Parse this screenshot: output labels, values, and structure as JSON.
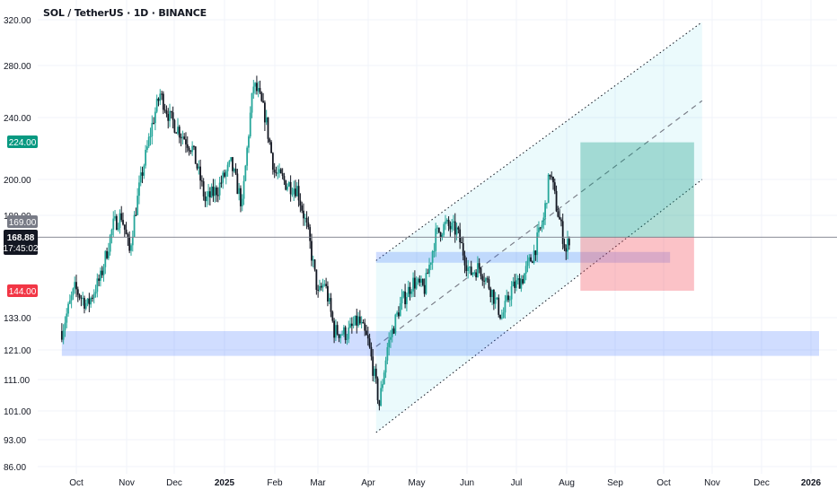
{
  "header": {
    "symbol_line": "SOL / TetherUS · 1D · BINANCE"
  },
  "chart_data": {
    "type": "candlestick",
    "title": "SOL / TetherUS · 1D · BINANCE",
    "y_ticks": [
      "320.00",
      "280.00",
      "240.00",
      "200.00",
      "180.00",
      "133.00",
      "121.00",
      "111.00",
      "101.00",
      "93.00",
      "86.00"
    ],
    "x_ticks": [
      "Oct",
      "Nov",
      "Dec",
      "2025",
      "Feb",
      "Mar",
      "Apr",
      "May",
      "Jun",
      "Jul",
      "Aug",
      "Sep",
      "Oct",
      "Nov",
      "Dec",
      "2026"
    ],
    "last_price_label": "168.88",
    "countdown_label": "17:45:02",
    "tags": [
      {
        "text": "224.00",
        "color": "#089981"
      },
      {
        "text": "169.00",
        "color": "#787b86"
      },
      {
        "text": "144.00",
        "color": "#f23645"
      }
    ],
    "price_path": [
      [
        "2024-09-22",
        128
      ],
      [
        "2024-09-30",
        145
      ],
      [
        "2024-10-08",
        138
      ],
      [
        "2024-10-16",
        150
      ],
      [
        "2024-10-24",
        175
      ],
      [
        "2024-10-29",
        180
      ],
      [
        "2024-11-03",
        162
      ],
      [
        "2024-11-10",
        200
      ],
      [
        "2024-11-18",
        240
      ],
      [
        "2024-11-22",
        258
      ],
      [
        "2024-11-28",
        240
      ],
      [
        "2024-12-05",
        230
      ],
      [
        "2024-12-12",
        220
      ],
      [
        "2024-12-20",
        188
      ],
      [
        "2024-12-28",
        195
      ],
      [
        "2025-01-05",
        210
      ],
      [
        "2025-01-12",
        185
      ],
      [
        "2025-01-19",
        265
      ],
      [
        "2025-01-22",
        258
      ],
      [
        "2025-01-26",
        242
      ],
      [
        "2025-02-01",
        205
      ],
      [
        "2025-02-08",
        198
      ],
      [
        "2025-02-15",
        195
      ],
      [
        "2025-02-22",
        170
      ],
      [
        "2025-02-28",
        142
      ],
      [
        "2025-03-04",
        148
      ],
      [
        "2025-03-10",
        128
      ],
      [
        "2025-03-18",
        127
      ],
      [
        "2025-03-25",
        132
      ],
      [
        "2025-03-31",
        124
      ],
      [
        "2025-04-07",
        103
      ],
      [
        "2025-04-12",
        122
      ],
      [
        "2025-04-20",
        138
      ],
      [
        "2025-04-28",
        148
      ],
      [
        "2025-05-05",
        145
      ],
      [
        "2025-05-12",
        170
      ],
      [
        "2025-05-18",
        175
      ],
      [
        "2025-05-25",
        172
      ],
      [
        "2025-06-02",
        152
      ],
      [
        "2025-06-08",
        155
      ],
      [
        "2025-06-15",
        145
      ],
      [
        "2025-06-22",
        133
      ],
      [
        "2025-06-28",
        145
      ],
      [
        "2025-07-05",
        150
      ],
      [
        "2025-07-12",
        162
      ],
      [
        "2025-07-18",
        178
      ],
      [
        "2025-07-22",
        205
      ],
      [
        "2025-07-26",
        185
      ],
      [
        "2025-08-01",
        162
      ],
      [
        "2025-08-03",
        168.88
      ]
    ],
    "annotations": {
      "support_zones": [
        {
          "y_range": [
            157,
            162
          ],
          "from": "2025-04-05",
          "to": "2025-10-05"
        },
        {
          "y_range": [
            119,
            128
          ],
          "from": "2024-09-22",
          "to": "2026-02-01"
        }
      ],
      "channel": {
        "lower": [
          [
            "2025-04-05",
            95
          ],
          [
            "2025-10-25",
            200
          ]
        ],
        "upper": [
          [
            "2025-04-05",
            158
          ],
          [
            "2025-10-25",
            322
          ]
        ]
      },
      "position": {
        "from": "2025-08-10",
        "to": "2025-10-20",
        "entry": 169.0,
        "target": 224.0,
        "stop": 144.0
      },
      "price_line": 168.88
    }
  }
}
